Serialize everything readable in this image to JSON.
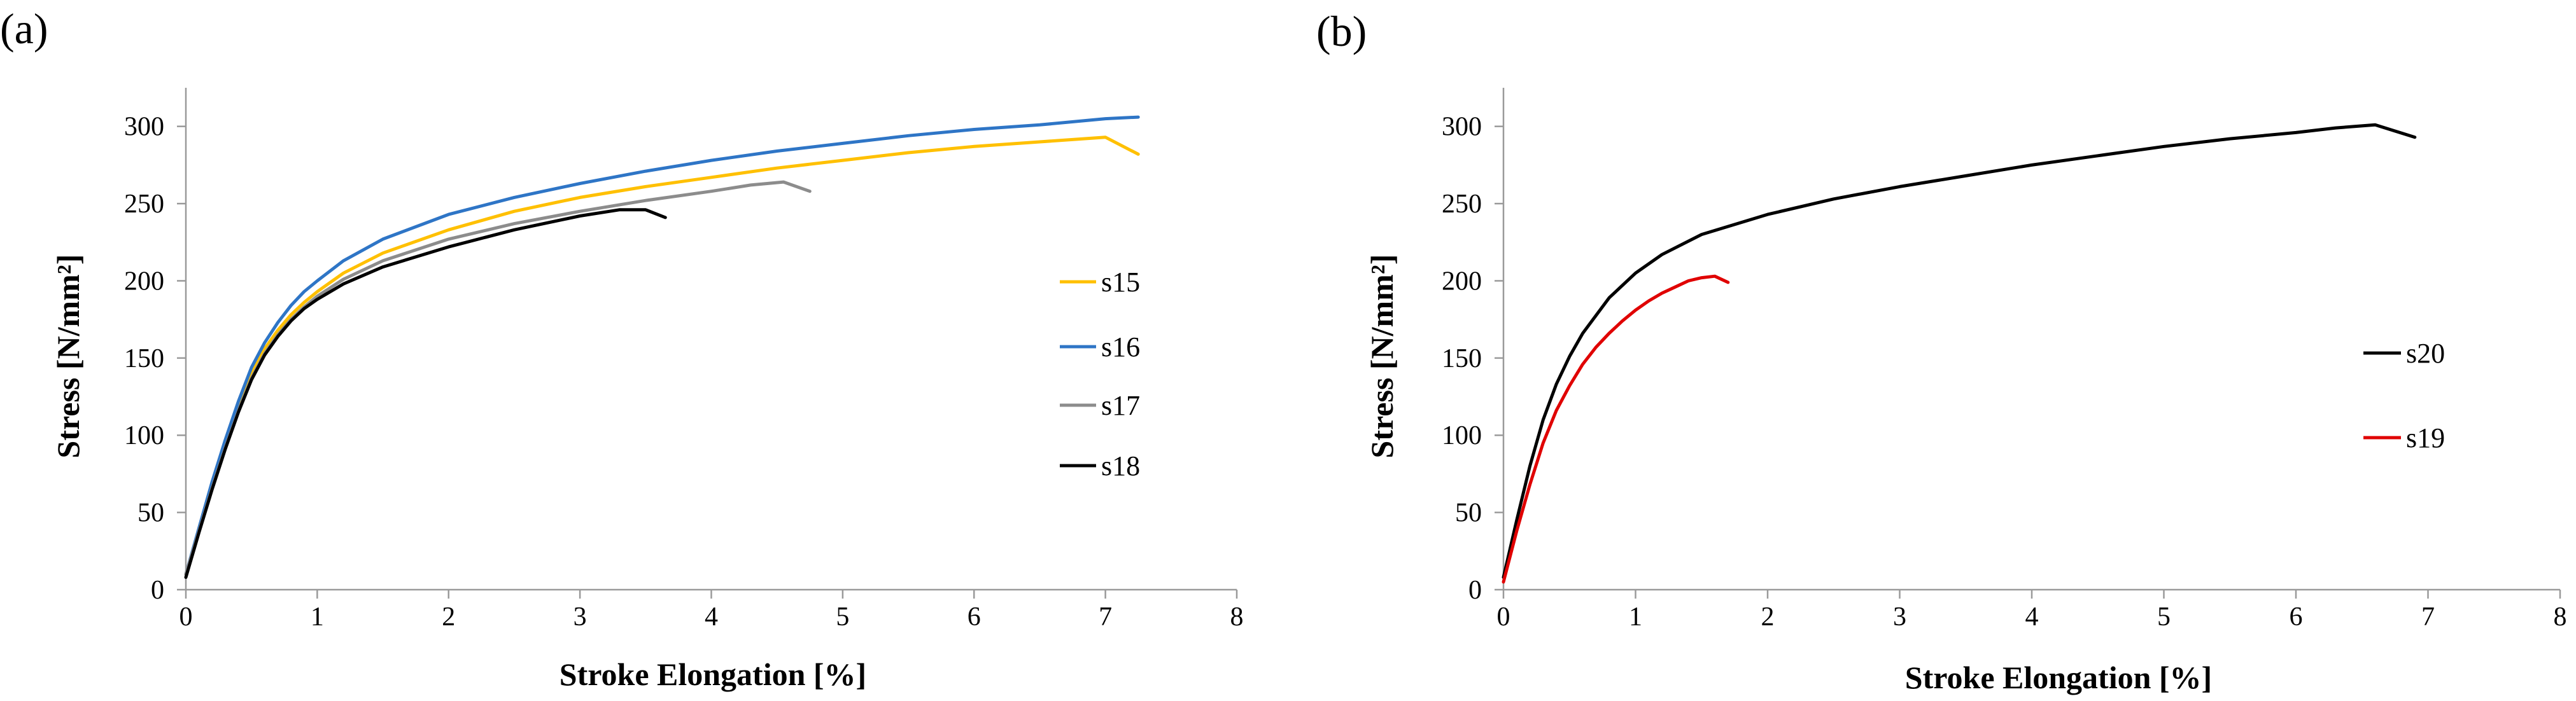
{
  "chart_data": [
    {
      "type": "line",
      "panel_label": "(a)",
      "title": "",
      "xlabel": "Stroke Elongation [%]",
      "ylabel": "Stress [N/mm²]",
      "xlim": [
        0,
        8
      ],
      "ylim": [
        0,
        325
      ],
      "x_ticks": [
        "0",
        "1",
        "2",
        "3",
        "4",
        "5",
        "6",
        "7",
        "8"
      ],
      "y_ticks": [
        "0",
        "50",
        "100",
        "150",
        "200",
        "250",
        "300"
      ],
      "grid": false,
      "legend_position": "right",
      "series": [
        {
          "name": "s15",
          "color": "#FFC000",
          "x": [
            0,
            0.1,
            0.2,
            0.3,
            0.4,
            0.5,
            0.6,
            0.7,
            0.8,
            0.9,
            1.0,
            1.2,
            1.5,
            2.0,
            2.5,
            3.0,
            3.5,
            4.0,
            4.5,
            5.0,
            5.5,
            6.0,
            6.5,
            7.0,
            7.25
          ],
          "y": [
            10,
            38,
            66,
            93,
            118,
            140,
            156,
            168,
            178,
            186,
            193,
            205,
            218,
            233,
            245,
            254,
            261,
            267,
            273,
            278,
            283,
            287,
            290,
            293,
            282
          ]
        },
        {
          "name": "s16",
          "color": "#2E75C6",
          "x": [
            0,
            0.1,
            0.2,
            0.3,
            0.4,
            0.5,
            0.6,
            0.7,
            0.8,
            0.9,
            1.0,
            1.2,
            1.5,
            2.0,
            2.5,
            3.0,
            3.5,
            4.0,
            4.5,
            5.0,
            5.5,
            6.0,
            6.5,
            7.0,
            7.25
          ],
          "y": [
            10,
            40,
            70,
            97,
            122,
            144,
            160,
            173,
            184,
            193,
            200,
            213,
            227,
            243,
            254,
            263,
            271,
            278,
            284,
            289,
            294,
            298,
            301,
            305,
            306
          ]
        },
        {
          "name": "s17",
          "color": "#8C8C8C",
          "x": [
            0,
            0.1,
            0.2,
            0.3,
            0.4,
            0.5,
            0.6,
            0.7,
            0.8,
            0.9,
            1.0,
            1.2,
            1.5,
            2.0,
            2.5,
            3.0,
            3.5,
            4.0,
            4.3,
            4.55,
            4.75
          ],
          "y": [
            10,
            38,
            66,
            92,
            116,
            137,
            153,
            165,
            175,
            183,
            190,
            201,
            213,
            227,
            237,
            245,
            252,
            258,
            262,
            264,
            258
          ]
        },
        {
          "name": "s18",
          "color": "#000000",
          "x": [
            0,
            0.1,
            0.2,
            0.3,
            0.4,
            0.5,
            0.6,
            0.7,
            0.8,
            0.9,
            1.0,
            1.2,
            1.5,
            2.0,
            2.5,
            3.0,
            3.3,
            3.5,
            3.65
          ],
          "y": [
            8,
            37,
            65,
            91,
            115,
            136,
            152,
            164,
            174,
            182,
            188,
            198,
            209,
            222,
            233,
            242,
            246,
            246,
            241
          ]
        }
      ]
    },
    {
      "type": "line",
      "panel_label": "(b)",
      "title": "",
      "xlabel": "Stroke Elongation [%]",
      "ylabel": "Stress  [N/mm²]",
      "xlim": [
        0,
        8
      ],
      "ylim": [
        0,
        325
      ],
      "x_ticks": [
        "0",
        "1",
        "2",
        "3",
        "4",
        "5",
        "6",
        "7",
        "8"
      ],
      "y_ticks": [
        "0",
        "50",
        "100",
        "150",
        "200",
        "250",
        "300"
      ],
      "grid": false,
      "legend_position": "right",
      "series": [
        {
          "name": "s20",
          "color": "#000000",
          "x": [
            0,
            0.1,
            0.2,
            0.3,
            0.4,
            0.5,
            0.6,
            0.8,
            1.0,
            1.2,
            1.5,
            2.0,
            2.5,
            3.0,
            3.5,
            4.0,
            4.5,
            5.0,
            5.5,
            6.0,
            6.3,
            6.6,
            6.9
          ],
          "y": [
            8,
            45,
            80,
            110,
            133,
            151,
            166,
            189,
            205,
            217,
            230,
            243,
            253,
            261,
            268,
            275,
            281,
            287,
            292,
            296,
            299,
            301,
            293
          ]
        },
        {
          "name": "s19",
          "color": "#E00000",
          "x": [
            0,
            0.1,
            0.2,
            0.3,
            0.4,
            0.5,
            0.6,
            0.7,
            0.8,
            0.9,
            1.0,
            1.1,
            1.2,
            1.3,
            1.4,
            1.5,
            1.6,
            1.7
          ],
          "y": [
            5,
            38,
            68,
            95,
            116,
            132,
            146,
            157,
            166,
            174,
            181,
            187,
            192,
            196,
            200,
            202,
            203,
            199
          ]
        }
      ]
    }
  ]
}
